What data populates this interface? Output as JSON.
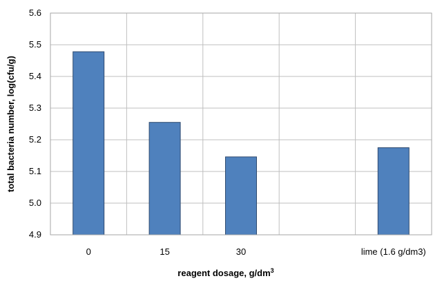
{
  "chart_data": {
    "type": "bar",
    "title": "",
    "xlabel": "reagent dosage, g/dm",
    "xlabel_superscript": "3",
    "ylabel": "total bacteria number, log(cfu/g)",
    "categories": [
      "0",
      "15",
      "30",
      "",
      "lime (1.6 g/dm3)"
    ],
    "values": [
      5.478,
      5.255,
      5.146,
      null,
      5.175
    ],
    "ylim": [
      4.9,
      5.6
    ],
    "yticks": [
      "4.9",
      "5.0",
      "5.1",
      "5.2",
      "5.3",
      "5.4",
      "5.5",
      "5.6"
    ],
    "grid": true,
    "legend": "none",
    "colors": {
      "bar": "#4f81bd"
    }
  }
}
